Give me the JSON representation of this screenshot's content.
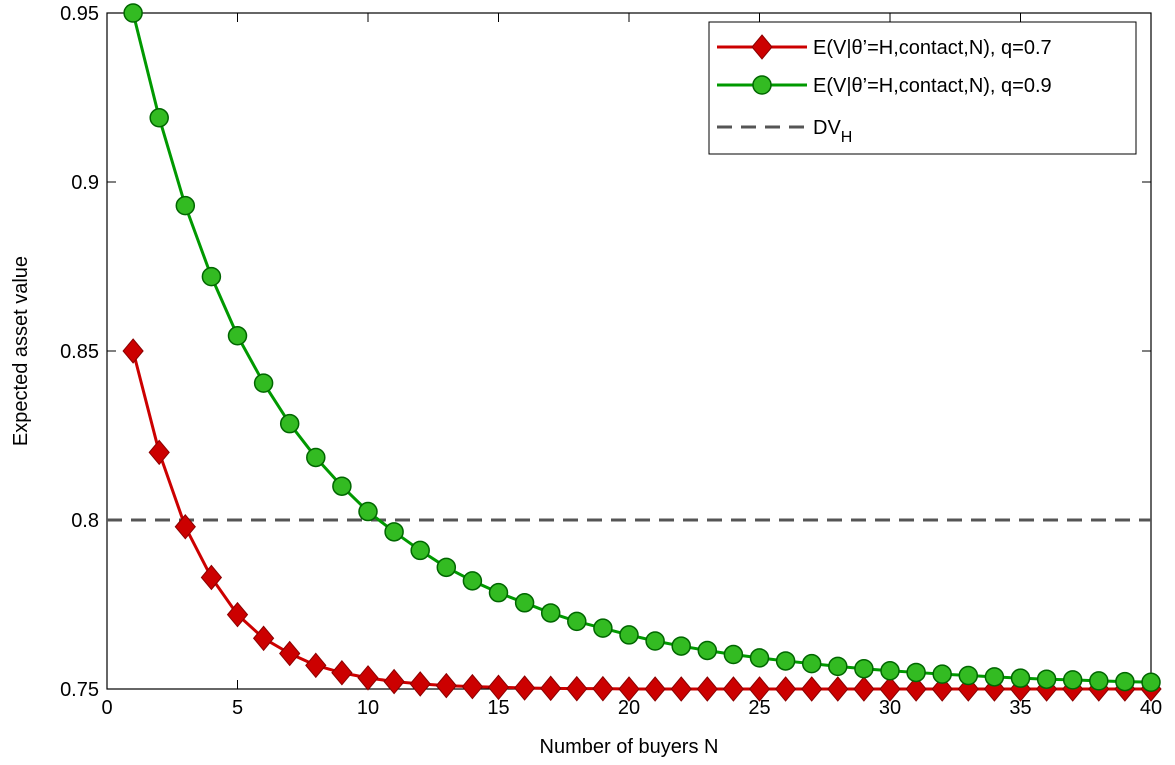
{
  "chart_data": {
    "type": "line",
    "xlabel": "Number of buyers N",
    "ylabel": "Expected asset value",
    "xlim": [
      0,
      40
    ],
    "ylim": [
      0.75,
      0.95
    ],
    "x_ticks": [
      0,
      5,
      10,
      15,
      20,
      25,
      30,
      35,
      40
    ],
    "x_tick_labels": [
      "0",
      "5",
      "10",
      "15",
      "20",
      "25",
      "30",
      "35",
      "40"
    ],
    "y_ticks": [
      0.75,
      0.8,
      0.85,
      0.9,
      0.95
    ],
    "y_tick_labels": [
      "0.75",
      "0.8",
      "0.85",
      "0.9",
      "0.95"
    ],
    "grid": false,
    "legend_position": "top-right",
    "x": [
      1,
      2,
      3,
      4,
      5,
      6,
      7,
      8,
      9,
      10,
      11,
      12,
      13,
      14,
      15,
      16,
      17,
      18,
      19,
      20,
      21,
      22,
      23,
      24,
      25,
      26,
      27,
      28,
      29,
      30,
      31,
      32,
      33,
      34,
      35,
      36,
      37,
      38,
      39,
      40
    ],
    "series": [
      {
        "name": "E(V|θ'=H,contact,N), q=0.7",
        "name_parts": [
          "E(V|θ’=H,contact,N), q=0.7"
        ],
        "color": "#cc0000",
        "marker": "diamond",
        "values": [
          0.85,
          0.82,
          0.798,
          0.783,
          0.772,
          0.765,
          0.7605,
          0.757,
          0.7548,
          0.7533,
          0.7522,
          0.7515,
          0.751,
          0.7507,
          0.7505,
          0.7503,
          0.7502,
          0.7501,
          0.7501,
          0.75,
          0.75,
          0.75,
          0.75,
          0.75,
          0.75,
          0.75,
          0.75,
          0.75,
          0.75,
          0.75,
          0.75,
          0.75,
          0.75,
          0.75,
          0.75,
          0.75,
          0.75,
          0.75,
          0.75,
          0.75
        ]
      },
      {
        "name": "E(V|θ'=H,contact,N), q=0.9",
        "name_parts": [
          "E(V|θ’=H,contact,N), q=0.9"
        ],
        "color": "#009900",
        "marker": "circle",
        "values": [
          0.95,
          0.919,
          0.893,
          0.872,
          0.8545,
          0.8405,
          0.8285,
          0.8185,
          0.81,
          0.8025,
          0.7965,
          0.791,
          0.786,
          0.782,
          0.7785,
          0.7755,
          0.7725,
          0.77,
          0.768,
          0.766,
          0.7642,
          0.7627,
          0.7614,
          0.7602,
          0.7592,
          0.7583,
          0.7575,
          0.7567,
          0.756,
          0.7554,
          0.7549,
          0.7544,
          0.754,
          0.7536,
          0.7532,
          0.7529,
          0.7527,
          0.7524,
          0.7522,
          0.752
        ]
      },
      {
        "name": "DV_H",
        "label_main": "DV",
        "label_sub": "H",
        "color": "#555555",
        "style": "dashed",
        "constant": 0.8
      }
    ]
  }
}
